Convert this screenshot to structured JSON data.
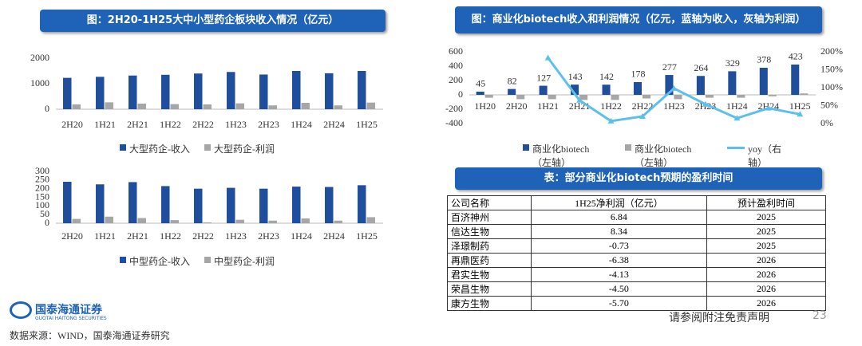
{
  "chart_data": [
    {
      "type": "bar",
      "title": "图：2H20-1H25大中小型药企板块收入情况（亿元）",
      "categories": [
        "2H20",
        "1H21",
        "2H21",
        "1H22",
        "2H22",
        "1H23",
        "2H23",
        "1H24",
        "2H24",
        "1H25"
      ],
      "series": [
        {
          "name": "大型药企-收入",
          "color": "#1f4e9c",
          "values": [
            1230,
            1270,
            1320,
            1350,
            1400,
            1460,
            1360,
            1500,
            1410,
            1500
          ]
        },
        {
          "name": "大型药企-利润",
          "color": "#a6a6a6",
          "values": [
            190,
            270,
            220,
            200,
            190,
            230,
            150,
            250,
            150,
            260
          ]
        }
      ],
      "ylim": [
        0,
        2000
      ],
      "yticks": [
        0,
        1000,
        2000
      ],
      "grid": false
    },
    {
      "type": "bar",
      "categories": [
        "2H20",
        "1H21",
        "2H21",
        "1H22",
        "2H22",
        "1H23",
        "2H23",
        "1H24",
        "2H24",
        "1H25"
      ],
      "series": [
        {
          "name": "中型药企-收入",
          "color": "#1f4e9c",
          "values": [
            240,
            225,
            238,
            215,
            200,
            205,
            200,
            212,
            210,
            220
          ]
        },
        {
          "name": "中型药企-利润",
          "color": "#a6a6a6",
          "values": [
            25,
            38,
            30,
            18,
            5,
            20,
            15,
            28,
            15,
            35
          ]
        }
      ],
      "ylim": [
        0,
        300
      ],
      "yticks": [
        0,
        50,
        100,
        150,
        200,
        250,
        300
      ],
      "grid": false
    },
    {
      "type": "bar",
      "title": "图：商业化biotech收入和利润情况（亿元，蓝轴为收入，灰轴为利润）",
      "categories": [
        "1H20",
        "2H20",
        "1H21",
        "2H21",
        "1H22",
        "2H22",
        "1H23",
        "2H23",
        "1H24",
        "2H24",
        "1H25"
      ],
      "series": [
        {
          "name": "商业化biotech（左轴）",
          "color": "#1f4e9c",
          "data_labels": true,
          "values": [
            45,
            82,
            127,
            143,
            142,
            178,
            277,
            264,
            329,
            378,
            423
          ]
        },
        {
          "name": "商业化biotech（左轴）",
          "color": "#a6a6a6",
          "values": [
            -40,
            -60,
            -60,
            -70,
            -70,
            -50,
            -60,
            -40,
            -40,
            -20,
            20
          ]
        },
        {
          "name": "yoy（右轴）",
          "color": "#5bc0eb",
          "type": "line",
          "axis": "y2",
          "values": [
            null,
            null,
            183,
            65,
            7,
            20,
            98,
            54,
            15,
            43,
            26
          ]
        }
      ],
      "ylim": [
        -400,
        600
      ],
      "yticks": [
        -400,
        -200,
        0,
        200,
        400,
        600
      ],
      "y2lim": [
        0,
        200
      ],
      "y2ticks": [
        {
          "value": 0,
          "label": "0%"
        },
        {
          "value": 50,
          "label": "50%"
        },
        {
          "value": 100,
          "label": "100%"
        },
        {
          "value": 150,
          "label": "150%"
        },
        {
          "value": 200,
          "label": "200%"
        }
      ],
      "grid": false
    }
  ],
  "table": {
    "title": "表：部分商业化biotech预期的盈利时间",
    "header": [
      "公司名称",
      "1H25净利润（亿元）",
      "预计盈利时间"
    ],
    "rows": [
      [
        "百济神州",
        "6.84",
        "2025"
      ],
      [
        "信达生物",
        "8.34",
        "2025"
      ],
      [
        "泽璟制药",
        "-0.73",
        "2025"
      ],
      [
        "再鼎医药",
        "-6.38",
        "2026"
      ],
      [
        "君实生物",
        "-4.13",
        "2026"
      ],
      [
        "荣昌生物",
        "-4.50",
        "2026"
      ],
      [
        "康方生物",
        "-5.70",
        "2026"
      ]
    ]
  },
  "footer": {
    "logo": "国泰海通证券",
    "logo_en": "GUOTAI HAITONG SECURITIES",
    "source": "数据来源：WIND，国泰海通证券研究",
    "disclaimer": "请参阅附注免责声明",
    "page": "23"
  }
}
